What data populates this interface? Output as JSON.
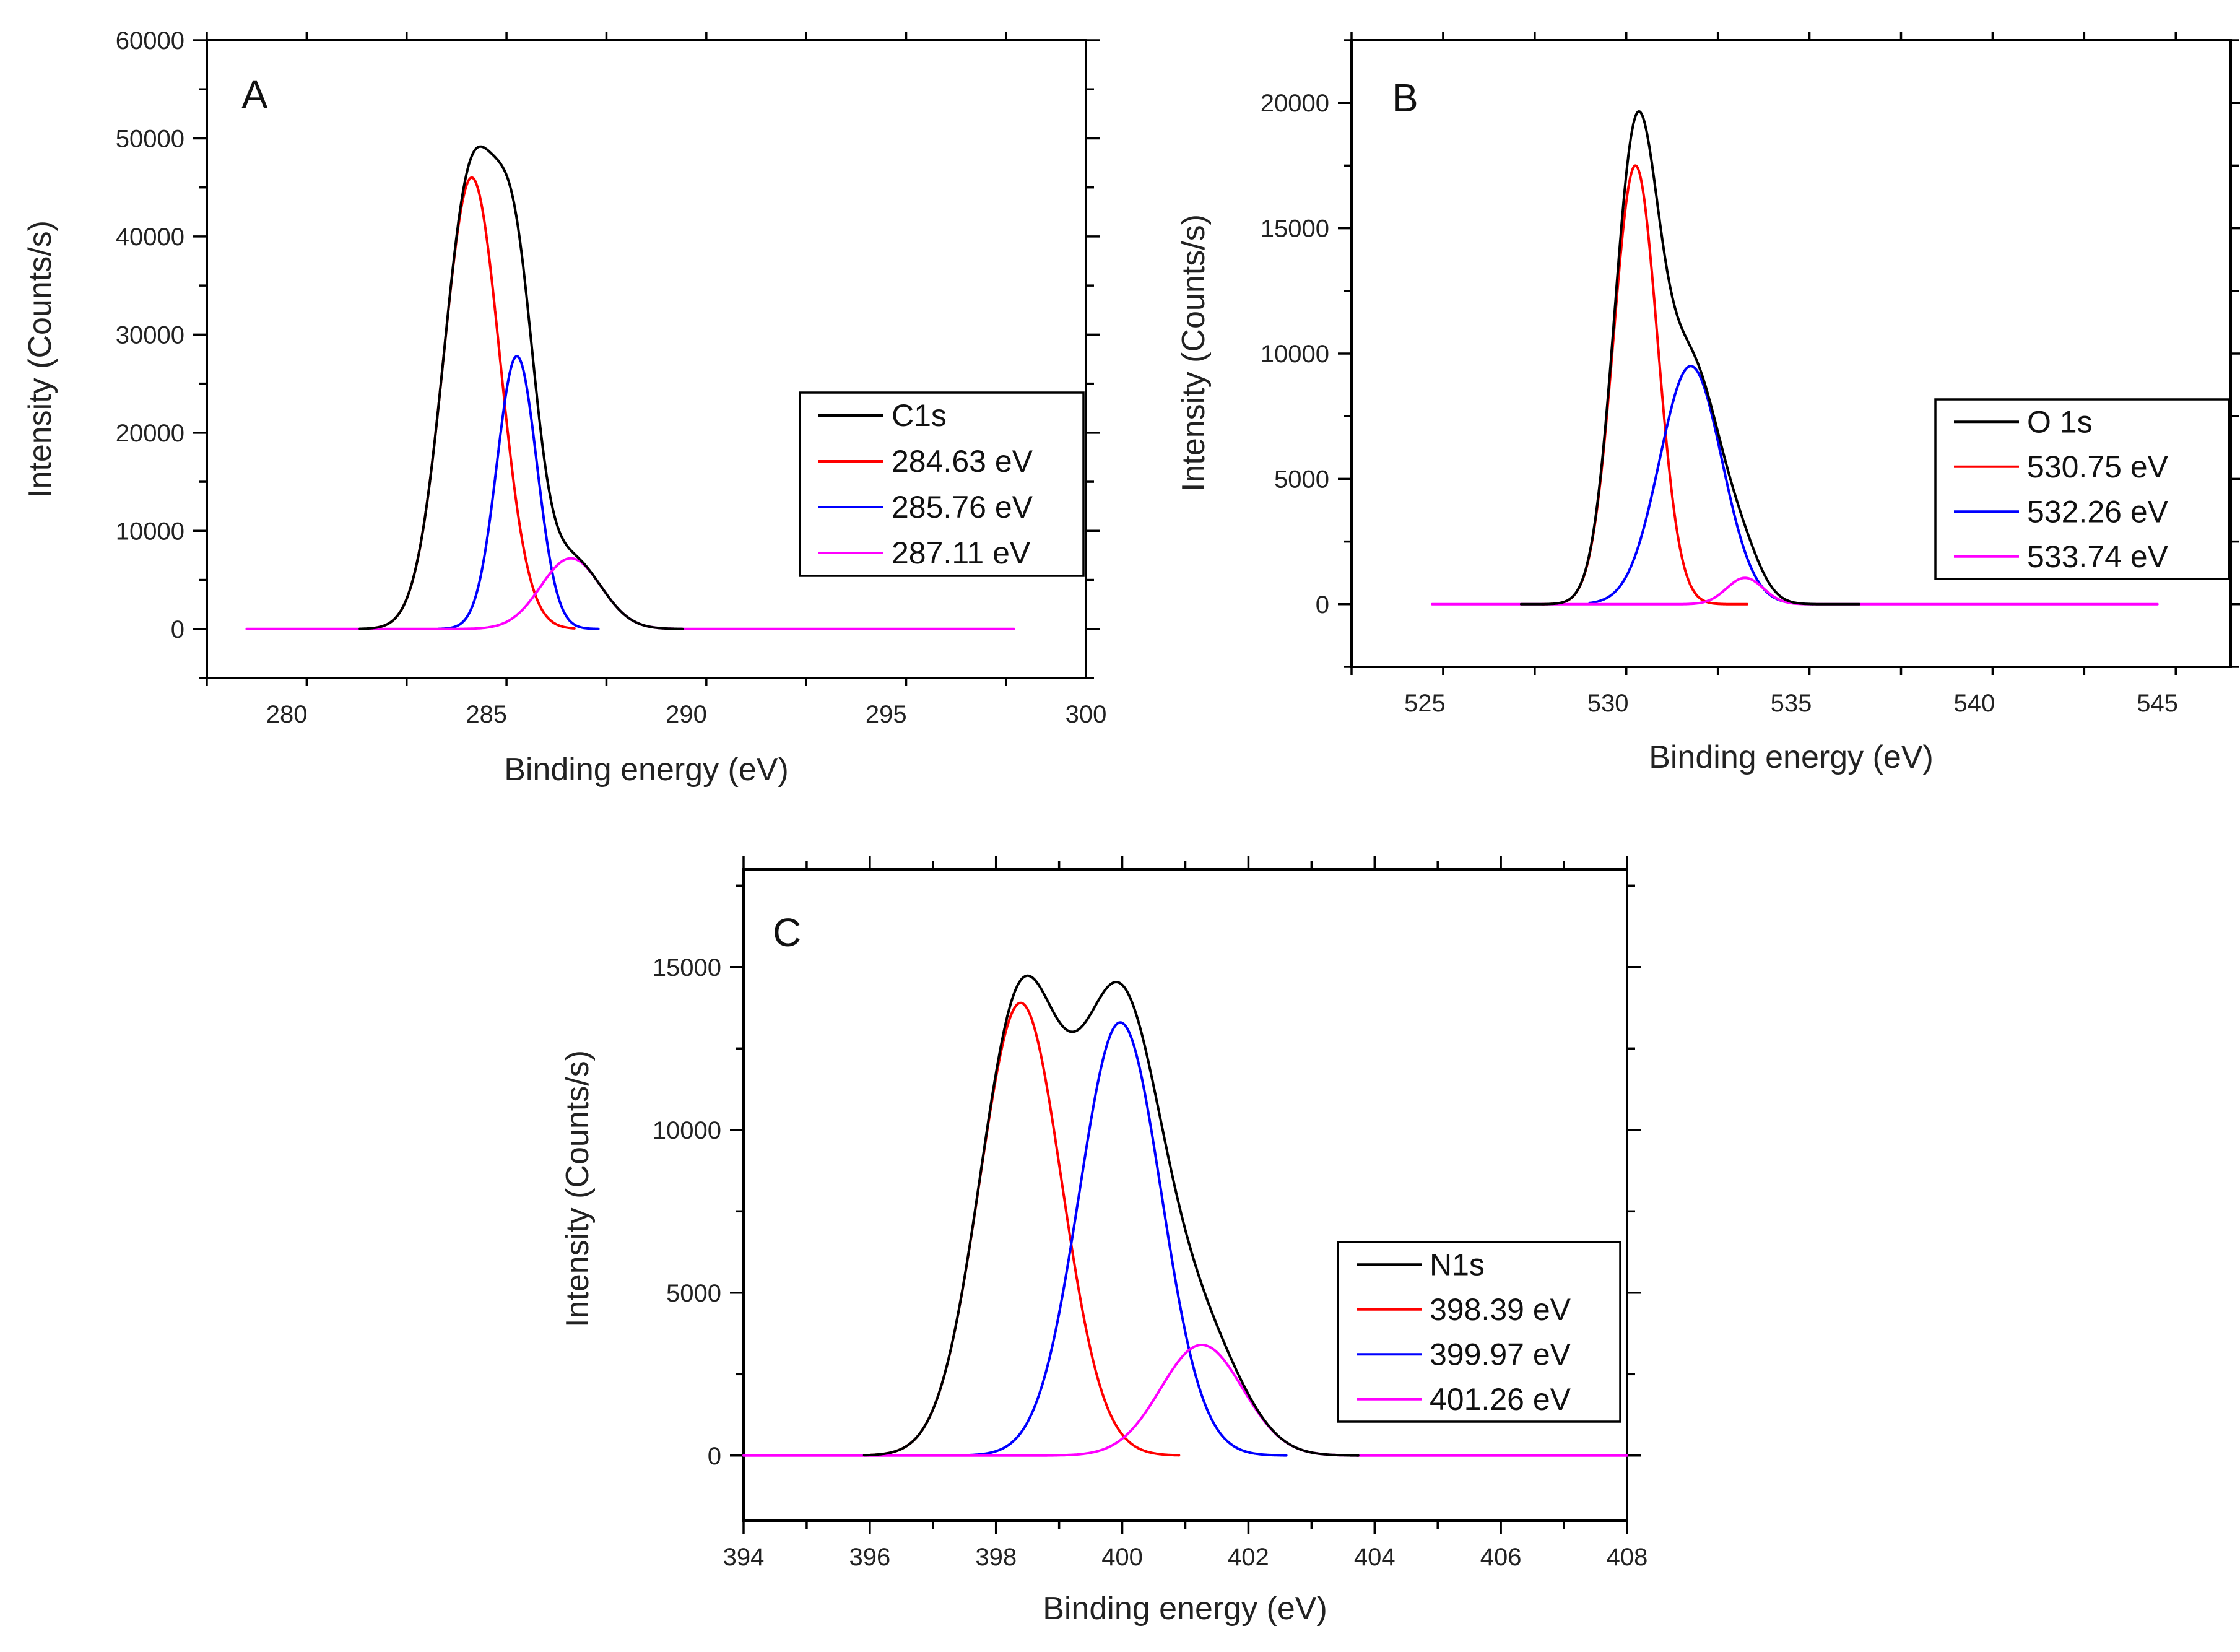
{
  "chart_data": [
    {
      "type": "line",
      "panel": "A",
      "xlabel": "Binding energy (eV)",
      "ylabel": "Intensity (Counts/s)",
      "xlim": [
        278,
        300
      ],
      "ylim": [
        -5000,
        60000
      ],
      "xticks": [
        280,
        285,
        290,
        295,
        300
      ],
      "yticks": [
        0,
        10000,
        20000,
        30000,
        40000,
        50000,
        60000
      ],
      "legend_position": "center-right",
      "x_range": [
        279,
        298.2
      ],
      "series": [
        {
          "name": "C1s",
          "role": "sum",
          "color": "#000000"
        },
        {
          "name": "284.63 eV",
          "center": 284.63,
          "amplitude": 46000,
          "sigma": 0.7,
          "fit_range": [
            282.2,
            287.2
          ],
          "color": "#ff0000"
        },
        {
          "name": "285.76 eV",
          "center": 285.76,
          "amplitude": 27800,
          "sigma": 0.5,
          "fit_range": [
            283.8,
            287.8
          ],
          "color": "#0000ff"
        },
        {
          "name": "287.11 eV",
          "center": 287.11,
          "amplitude": 7200,
          "sigma": 0.75,
          "fit_range": [
            279,
            298.2
          ],
          "color": "#ff00ff"
        }
      ]
    },
    {
      "type": "line",
      "panel": "B",
      "xlabel": "Binding energy (eV)",
      "ylabel": "Intensity (Counts/s)",
      "xlim": [
        523,
        547
      ],
      "ylim": [
        -2500,
        22500
      ],
      "xticks": [
        525,
        530,
        535,
        540,
        545
      ],
      "yticks": [
        0,
        5000,
        10000,
        15000,
        20000
      ],
      "legend_position": "center-right",
      "x_range": [
        525.2,
        545
      ],
      "series": [
        {
          "name": "O 1s",
          "role": "sum",
          "color": "#000000"
        },
        {
          "name": "530.75 eV",
          "center": 530.75,
          "amplitude": 17500,
          "sigma": 0.6,
          "fit_range": [
            528.2,
            533.8
          ],
          "color": "#ff0000"
        },
        {
          "name": "532.26 eV",
          "center": 532.26,
          "amplitude": 9500,
          "sigma": 0.85,
          "fit_range": [
            529.5,
            535.6
          ],
          "color": "#0000ff"
        },
        {
          "name": "533.74 eV",
          "center": 533.74,
          "amplitude": 1050,
          "sigma": 0.5,
          "fit_range": [
            525.2,
            545
          ],
          "color": "#ff00ff"
        }
      ]
    },
    {
      "type": "line",
      "panel": "C",
      "xlabel": "Binding energy (eV)",
      "ylabel": "Intensity (Counts/s)",
      "xlim": [
        394,
        408
      ],
      "ylim": [
        -2000,
        18000
      ],
      "xticks": [
        394,
        396,
        398,
        400,
        402,
        404,
        406,
        408
      ],
      "yticks": [
        0,
        5000,
        10000,
        15000
      ],
      "legend_position": "bottom-right",
      "x_range": [
        394,
        408
      ],
      "series": [
        {
          "name": "N1s",
          "role": "sum",
          "color": "#000000"
        },
        {
          "name": "398.39 eV",
          "center": 398.39,
          "amplitude": 13900,
          "sigma": 0.65,
          "fit_range": [
            395.9,
            400.9
          ],
          "color": "#ff0000"
        },
        {
          "name": "399.97 eV",
          "center": 399.97,
          "amplitude": 13300,
          "sigma": 0.65,
          "fit_range": [
            397.4,
            402.6
          ],
          "color": "#0000ff"
        },
        {
          "name": "401.26 eV",
          "center": 401.26,
          "amplitude": 3400,
          "sigma": 0.65,
          "fit_range": [
            394,
            408
          ],
          "color": "#ff00ff"
        }
      ]
    }
  ]
}
